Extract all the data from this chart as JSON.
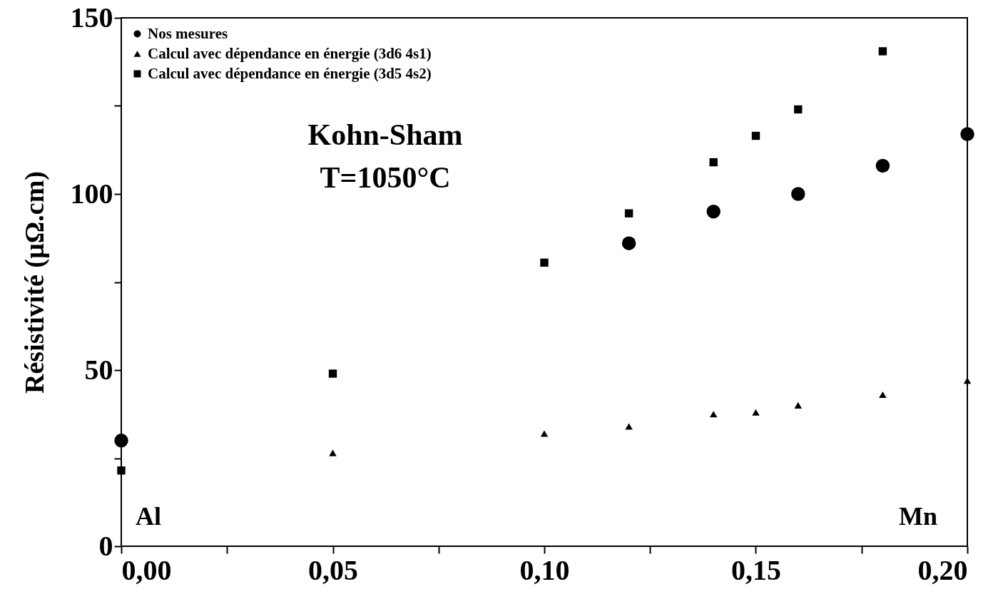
{
  "chart_data": {
    "type": "scatter",
    "ylabel": "Résistivité  (µΩ.cm)",
    "annotations": [
      "Kohn-Sham",
      "T=1050°C",
      "Al",
      "Mn"
    ],
    "xlim": [
      0,
      0.2
    ],
    "xticks": [
      {
        "value": 0,
        "label": "0,00"
      },
      {
        "value": 0.025,
        "label": null
      },
      {
        "value": 0.05,
        "label": "0,05"
      },
      {
        "value": 0.075,
        "label": null
      },
      {
        "value": 0.1,
        "label": "0,10"
      },
      {
        "value": 0.125,
        "label": null
      },
      {
        "value": 0.15,
        "label": "0,15"
      },
      {
        "value": 0.175,
        "label": null
      },
      {
        "value": 0.2,
        "label": "0,20"
      }
    ],
    "ylim": [
      0,
      150
    ],
    "yticks": [
      0,
      {
        "value": 25,
        "label": null
      },
      50,
      {
        "value": 75,
        "label": null
      },
      100,
      {
        "value": 125,
        "label": null
      },
      150
    ],
    "grid": false,
    "legend": "top left",
    "series": [
      {
        "name": "Nos mesures",
        "color": "#000000",
        "marker": "circle",
        "x": [
          0,
          0.12,
          0.14,
          0.16,
          0.18,
          0.2
        ],
        "values": [
          30,
          86,
          95,
          100,
          108,
          117
        ]
      },
      {
        "name": "Calcul avec dépendance en énergie (3d6 4s1)",
        "color": "#000000",
        "marker": "triangle",
        "x": [
          0.05,
          0.1,
          0.12,
          0.14,
          0.15,
          0.16,
          0.18,
          0.2
        ],
        "values": [
          26.5,
          32,
          34,
          37.5,
          38,
          40,
          43,
          47
        ]
      },
      {
        "name": "Calcul avec dépendance en énergie (3d5 4s2)",
        "color": "#000000",
        "marker": "square",
        "x": [
          0,
          0.05,
          0.1,
          0.12,
          0.14,
          0.15,
          0.16,
          0.18
        ],
        "values": [
          21.5,
          49,
          80.5,
          94.5,
          109,
          116.5,
          124,
          140.5
        ]
      }
    ]
  }
}
